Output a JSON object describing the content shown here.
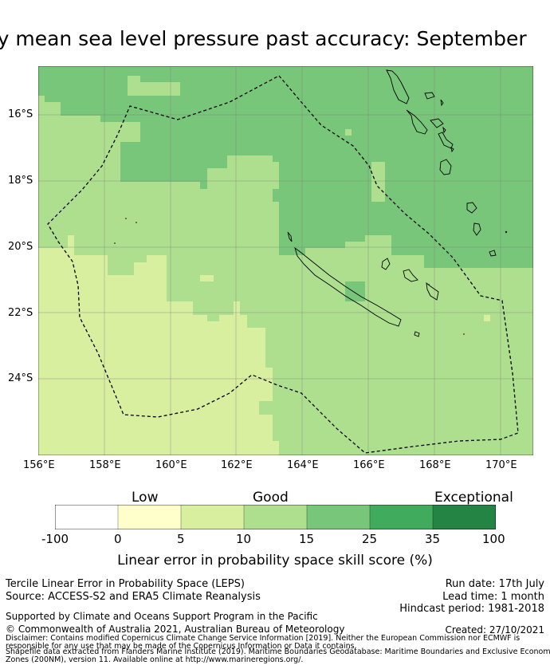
{
  "title": "Monthly mean sea level pressure past accuracy: September",
  "map": {
    "lat_labels": [
      "16°S",
      "18°S",
      "20°S",
      "22°S",
      "24°S"
    ],
    "lon_labels": [
      "156°E",
      "158°E",
      "160°E",
      "162°E",
      "164°E",
      "166°E",
      "168°E",
      "170°E"
    ],
    "lon_range": [
      156,
      171
    ],
    "lat_range": [
      -25.9,
      -14.5
    ],
    "colors": {
      "c5_10": "#d9efa0",
      "c10_15": "#addf8e",
      "c15_25": "#78c679",
      "c25_35": "#41ab5d"
    }
  },
  "colorbar": {
    "headers": {
      "low": "Low",
      "good": "Good",
      "exceptional": "Exceptional"
    },
    "ticks": [
      "-100",
      "0",
      "5",
      "10",
      "15",
      "25",
      "35",
      "100"
    ],
    "segments": [
      {
        "range": "-100 to 0",
        "color": "#ffffff"
      },
      {
        "range": "0 to 5",
        "color": "#ffffcc"
      },
      {
        "range": "5 to 10",
        "color": "#d9efa0"
      },
      {
        "range": "10 to 15",
        "color": "#addf8e"
      },
      {
        "range": "15 to 25",
        "color": "#78c679"
      },
      {
        "range": "25 to 35",
        "color": "#41ab5d"
      },
      {
        "range": "35 to 100",
        "color": "#238443"
      }
    ],
    "label": "Linear error in probability space skill score (%)"
  },
  "info": {
    "left1": "Tercile Linear Error in Probability Space (LEPS)",
    "left2": "Source: ACCESS-S2 and ERA5 Climate Reanalysis",
    "right1": "Run date: 17th July",
    "right2": "Lead time: 1 month",
    "right3": "Hindcast period: 1981-2018",
    "support": "Supported by Climate and Oceans Support Program in the Pacific",
    "copyright": "© Commonwealth of Australia 2021, Australian Bureau of Meteorology",
    "created": "Created: 27/10/2021",
    "disclaimer1": "Disclaimer: Contains modified Copernicus Climate Change Service Information [2019]. Neither the European Commission nor ECMWF is",
    "disclaimer2": "responsible for any use that may be made of the Copernicus Information or Data it contains.",
    "disclaimer3": "Shapefile data extracted from Flanders Marine Institute (2019). Maritime Boundaries Geodatabase: Maritime Boundaries and Exclusive Economic",
    "disclaimer4": "Zones (200NM), version 11. Available online at http://www.marineregions.org/."
  }
}
